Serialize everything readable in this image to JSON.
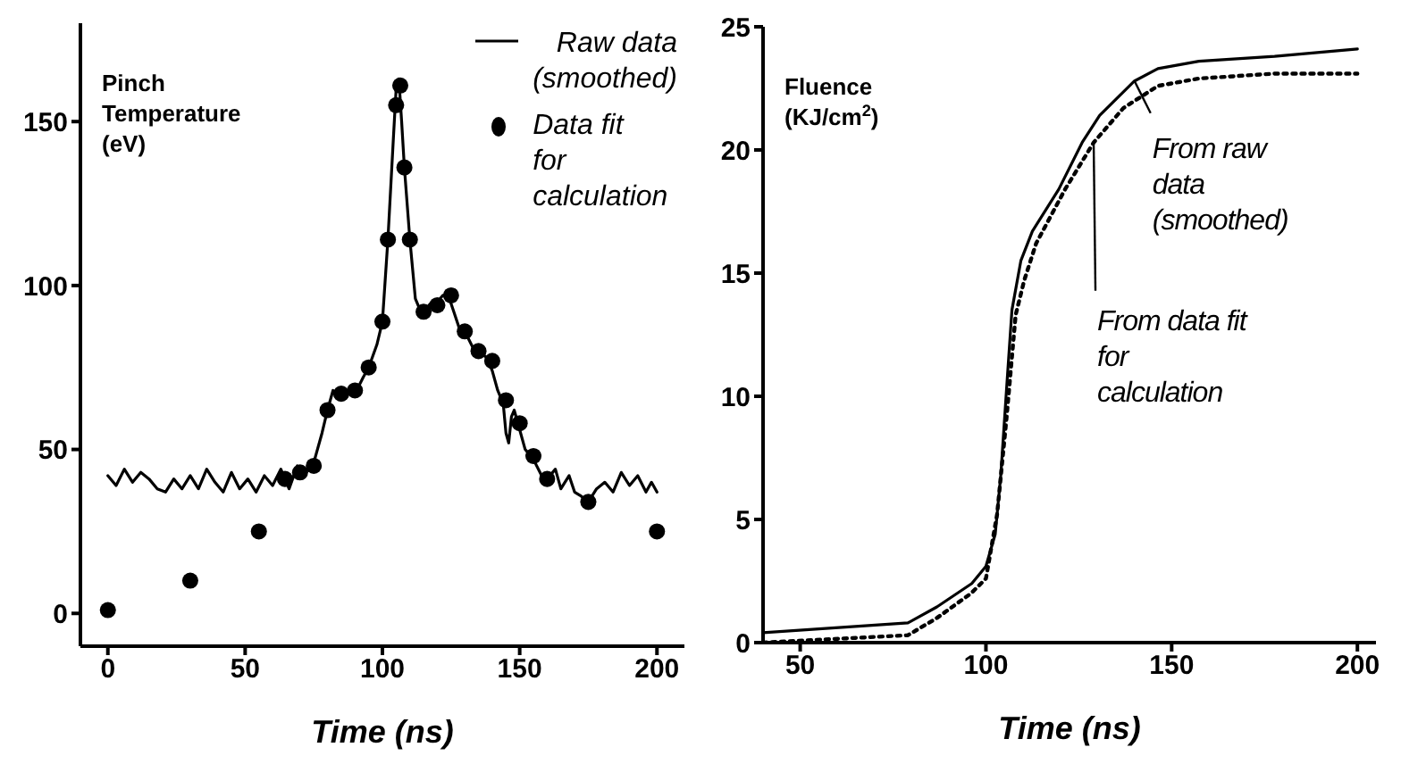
{
  "chart_data": [
    {
      "type": "line",
      "ylabel": "Pinch Temperature (eV)",
      "xlabel": "Time (ns)",
      "xlim": [
        -10,
        210
      ],
      "ylim": [
        -10,
        180
      ],
      "xticks": [
        0,
        50,
        100,
        150,
        200
      ],
      "yticks": [
        0,
        50,
        100,
        150
      ],
      "legend": "top right",
      "series": [
        {
          "name": "Raw data (smoothed)",
          "color": "#000000",
          "marker": "none",
          "line_style": "solid",
          "x": [
            0,
            3,
            6,
            9,
            12,
            15,
            18,
            21,
            24,
            27,
            30,
            33,
            36,
            39,
            42,
            45,
            48,
            51,
            54,
            57,
            60,
            63,
            66,
            69,
            72,
            75,
            78,
            80,
            82,
            85,
            88,
            90,
            93,
            95,
            98,
            100,
            102,
            104,
            105,
            106,
            107,
            108,
            110,
            112,
            114,
            116,
            118,
            120,
            122,
            124,
            126,
            128,
            130,
            133,
            135,
            138,
            140,
            142,
            144,
            145,
            146,
            147,
            148,
            150,
            152,
            155,
            158,
            160,
            163,
            165,
            168,
            170,
            172,
            175,
            178,
            181,
            184,
            187,
            190,
            193,
            196,
            198,
            200
          ],
          "values": [
            42,
            39,
            44,
            40,
            43,
            41,
            38,
            37,
            41,
            38,
            42,
            38,
            44,
            40,
            37,
            43,
            38,
            41,
            37,
            42,
            39,
            44,
            38,
            45,
            43,
            46,
            55,
            62,
            68,
            66,
            67,
            67,
            72,
            75,
            82,
            89,
            114,
            145,
            160,
            163,
            150,
            136,
            114,
            96,
            92,
            93,
            95,
            95,
            97,
            97,
            92,
            87,
            86,
            81,
            80,
            78,
            74,
            68,
            64,
            55,
            52,
            60,
            62,
            56,
            50,
            47,
            42,
            41,
            44,
            38,
            42,
            37,
            36,
            34,
            38,
            40,
            37,
            43,
            39,
            42,
            37,
            40,
            37
          ]
        },
        {
          "type": "scatter",
          "name": "Data fit for calculation",
          "color": "#000000",
          "marker": "circle",
          "x": [
            0,
            30,
            55,
            64.5,
            70,
            75,
            80,
            85,
            90,
            95,
            100,
            102,
            105,
            106.5,
            108,
            110,
            115,
            120,
            125,
            130,
            135,
            140,
            145,
            150,
            155,
            160,
            175,
            200
          ],
          "values": [
            1,
            10,
            25,
            41,
            43,
            45,
            62,
            67,
            68,
            75,
            89,
            114,
            155,
            161,
            136,
            114,
            92,
            94,
            97,
            86,
            80,
            77,
            65,
            58,
            48,
            41,
            34,
            25
          ]
        }
      ]
    },
    {
      "type": "line",
      "ylabel": "Fluence (KJ/cm$^{2}$)",
      "xlabel": "Time (ns)",
      "xlim": [
        40,
        205
      ],
      "ylim": [
        0,
        25
      ],
      "xticks": [
        50,
        100,
        150,
        200
      ],
      "yticks": [
        0,
        5,
        10,
        15,
        20,
        25
      ],
      "legend": false,
      "annotations": [
        {
          "text": "From raw data (smoothed)",
          "x": 140,
          "y": 22.8
        },
        {
          "text": "From data fit for calculation",
          "x": 129,
          "y": 20.3
        }
      ],
      "series": [
        {
          "color": "#000000",
          "line_style": "solid",
          "marker": "none",
          "x": [
            40,
            79,
            86.8,
            96.2,
            100,
            102.5,
            104,
            105.6,
            107,
            109.4,
            112.5,
            119.6,
            125.9,
            130.6,
            140,
            146.3,
            157.3,
            177.7,
            200
          ],
          "values": [
            0.4,
            0.8,
            1.45,
            2.4,
            3.1,
            4.4,
            6.8,
            10.4,
            13.5,
            15.5,
            16.7,
            18.4,
            20.3,
            21.4,
            22.8,
            23.3,
            23.6,
            23.8,
            24.1
          ]
        },
        {
          "color": "#000000",
          "line_style": "dotted",
          "marker": "none",
          "x": [
            40,
            79,
            86.8,
            96,
            100,
            103,
            105.6,
            108,
            110.3,
            113.5,
            121.3,
            129,
            137,
            146.3,
            157.3,
            177.7,
            200
          ],
          "values": [
            0,
            0.3,
            1.0,
            2.0,
            2.6,
            5.2,
            9.2,
            13.3,
            14.7,
            16.2,
            18.4,
            20.3,
            21.7,
            22.6,
            22.9,
            23.1,
            23.1
          ]
        }
      ]
    }
  ]
}
